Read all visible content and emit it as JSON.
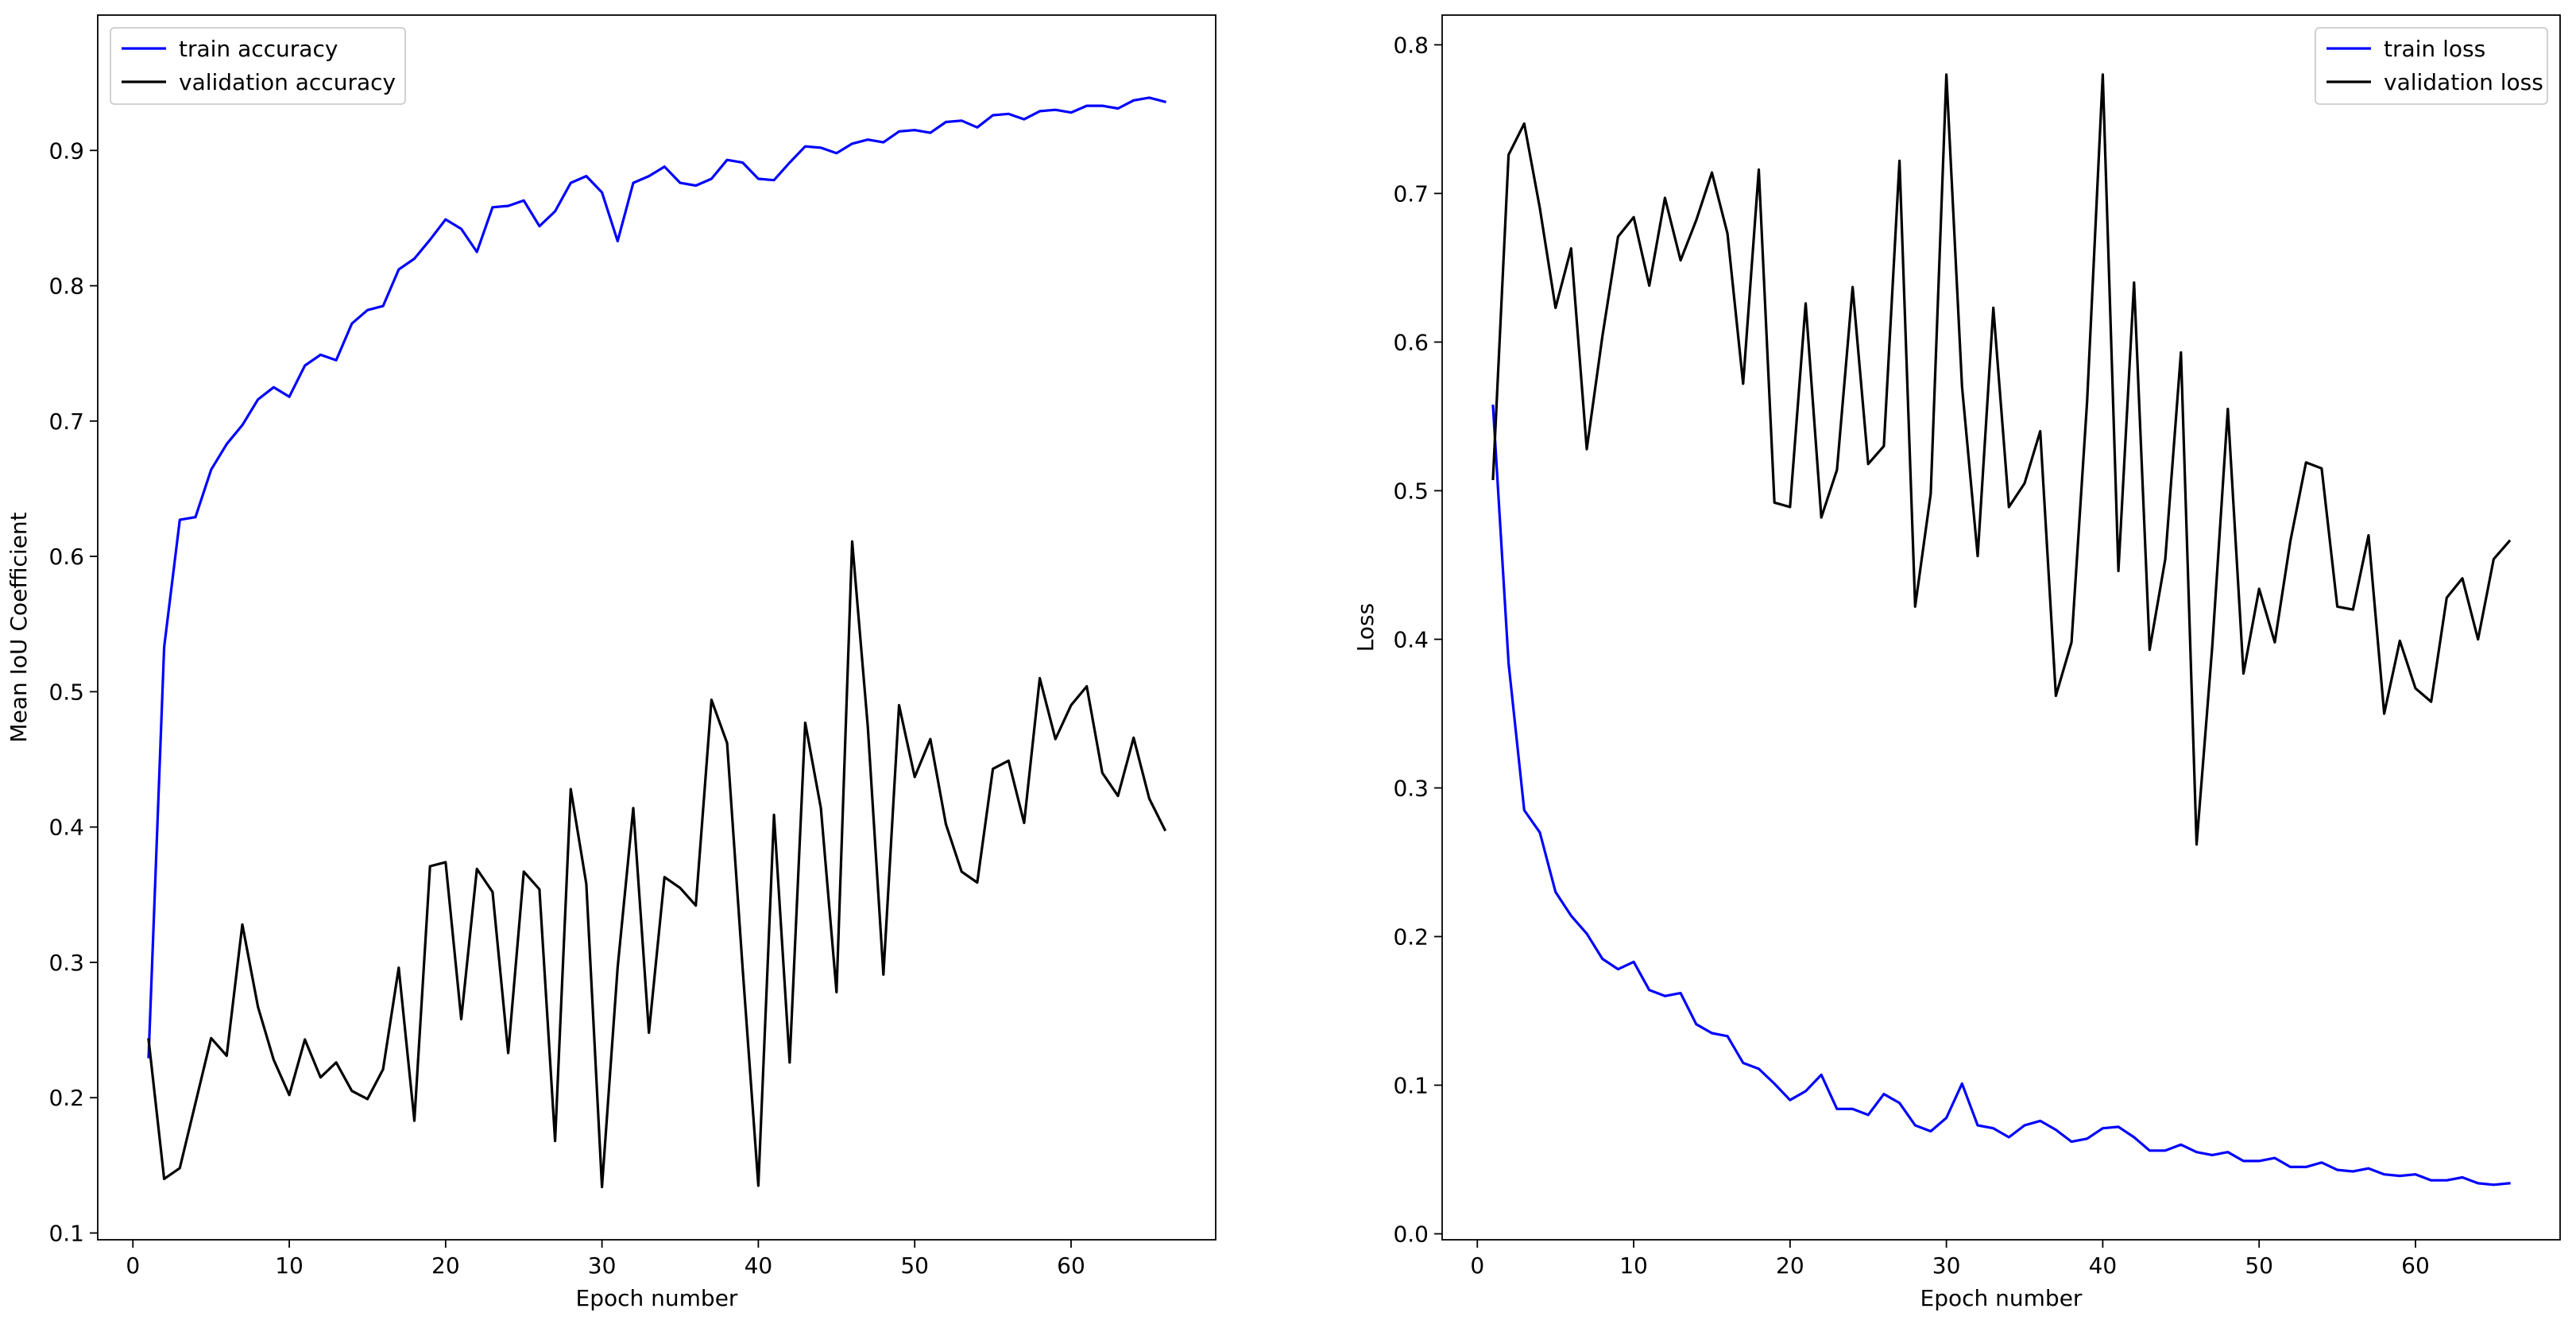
{
  "chart_data": [
    {
      "type": "line",
      "title": "",
      "xlabel": "Epoch number",
      "ylabel": "Mean IoU Coefficient",
      "xlim": [
        -2.25,
        69.25
      ],
      "ylim": [
        0.095,
        1.0
      ],
      "xticks": [
        0,
        10,
        20,
        30,
        40,
        50,
        60
      ],
      "yticks": [
        0.1,
        0.2,
        0.3,
        0.4,
        0.5,
        0.6,
        0.7,
        0.8,
        0.9
      ],
      "tick_labels_x": [
        "0",
        "10",
        "20",
        "30",
        "40",
        "50",
        "60"
      ],
      "tick_labels_y": [
        "0.1",
        "0.2",
        "0.3",
        "0.4",
        "0.5",
        "0.6",
        "0.7",
        "0.8",
        "0.9"
      ],
      "grid": false,
      "legend_position": "top-left",
      "x": [
        1,
        2,
        3,
        4,
        5,
        6,
        7,
        8,
        9,
        10,
        11,
        12,
        13,
        14,
        15,
        16,
        17,
        18,
        19,
        20,
        21,
        22,
        23,
        24,
        25,
        26,
        27,
        28,
        29,
        30,
        31,
        32,
        33,
        34,
        35,
        36,
        37,
        38,
        39,
        40,
        41,
        42,
        43,
        44,
        45,
        46,
        47,
        48,
        49,
        50,
        51,
        52,
        53,
        54,
        55,
        56,
        57,
        58,
        59,
        60,
        61,
        62,
        63,
        64,
        65,
        66
      ],
      "series": [
        {
          "name": "train accuracy",
          "color": "#0000ff",
          "values": [
            0.23,
            0.533,
            0.627,
            0.629,
            0.664,
            0.683,
            0.697,
            0.716,
            0.725,
            0.718,
            0.741,
            0.749,
            0.745,
            0.772,
            0.782,
            0.785,
            0.812,
            0.82,
            0.834,
            0.849,
            0.842,
            0.825,
            0.858,
            0.859,
            0.863,
            0.844,
            0.855,
            0.876,
            0.881,
            0.869,
            0.833,
            0.876,
            0.881,
            0.888,
            0.876,
            0.874,
            0.879,
            0.893,
            0.891,
            0.879,
            0.878,
            0.891,
            0.903,
            0.902,
            0.898,
            0.905,
            0.908,
            0.906,
            0.914,
            0.915,
            0.913,
            0.921,
            0.922,
            0.917,
            0.926,
            0.927,
            0.923,
            0.929,
            0.93,
            0.928,
            0.933,
            0.933,
            0.931,
            0.937,
            0.939,
            0.936
          ]
        },
        {
          "name": "validation accuracy",
          "color": "#000000",
          "values": [
            0.243,
            0.14,
            0.148,
            0.196,
            0.244,
            0.231,
            0.328,
            0.267,
            0.228,
            0.202,
            0.243,
            0.215,
            0.226,
            0.205,
            0.199,
            0.221,
            0.296,
            0.183,
            0.371,
            0.374,
            0.258,
            0.369,
            0.352,
            0.233,
            0.367,
            0.354,
            0.168,
            0.428,
            0.358,
            0.134,
            0.296,
            0.414,
            0.248,
            0.363,
            0.355,
            0.342,
            0.494,
            0.462,
            0.295,
            0.135,
            0.409,
            0.226,
            0.477,
            0.414,
            0.278,
            0.611,
            0.474,
            0.291,
            0.49,
            0.437,
            0.465,
            0.402,
            0.367,
            0.359,
            0.443,
            0.449,
            0.403,
            0.51,
            0.465,
            0.49,
            0.504,
            0.44,
            0.423,
            0.466,
            0.421,
            0.398
          ]
        }
      ]
    },
    {
      "type": "line",
      "title": "",
      "xlabel": "Epoch number",
      "ylabel": "Loss",
      "xlim": [
        -2.25,
        69.25
      ],
      "ylim": [
        -0.004,
        0.82
      ],
      "xticks": [
        0,
        10,
        20,
        30,
        40,
        50,
        60
      ],
      "yticks": [
        0.0,
        0.1,
        0.2,
        0.3,
        0.4,
        0.5,
        0.6,
        0.7,
        0.8
      ],
      "tick_labels_x": [
        "0",
        "10",
        "20",
        "30",
        "40",
        "50",
        "60"
      ],
      "tick_labels_y": [
        "0.0",
        "0.1",
        "0.2",
        "0.3",
        "0.4",
        "0.5",
        "0.6",
        "0.7",
        "0.8"
      ],
      "grid": false,
      "legend_position": "top-right",
      "x": [
        1,
        2,
        3,
        4,
        5,
        6,
        7,
        8,
        9,
        10,
        11,
        12,
        13,
        14,
        15,
        16,
        17,
        18,
        19,
        20,
        21,
        22,
        23,
        24,
        25,
        26,
        27,
        28,
        29,
        30,
        31,
        32,
        33,
        34,
        35,
        36,
        37,
        38,
        39,
        40,
        41,
        42,
        43,
        44,
        45,
        46,
        47,
        48,
        49,
        50,
        51,
        52,
        53,
        54,
        55,
        56,
        57,
        58,
        59,
        60,
        61,
        62,
        63,
        64,
        65,
        66
      ],
      "series": [
        {
          "name": "train loss",
          "color": "#0000ff",
          "values": [
            0.557,
            0.384,
            0.285,
            0.27,
            0.23,
            0.214,
            0.202,
            0.185,
            0.178,
            0.183,
            0.164,
            0.16,
            0.162,
            0.141,
            0.135,
            0.133,
            0.115,
            0.111,
            0.101,
            0.09,
            0.096,
            0.107,
            0.084,
            0.084,
            0.08,
            0.094,
            0.088,
            0.073,
            0.069,
            0.078,
            0.101,
            0.073,
            0.071,
            0.065,
            0.073,
            0.076,
            0.07,
            0.062,
            0.064,
            0.071,
            0.072,
            0.065,
            0.056,
            0.056,
            0.06,
            0.055,
            0.053,
            0.055,
            0.049,
            0.049,
            0.051,
            0.045,
            0.045,
            0.048,
            0.043,
            0.042,
            0.044,
            0.04,
            0.039,
            0.04,
            0.036,
            0.036,
            0.038,
            0.034,
            0.033,
            0.034
          ]
        },
        {
          "name": "validation loss",
          "color": "#000000",
          "values": [
            0.508,
            0.726,
            0.747,
            0.69,
            0.623,
            0.663,
            0.528,
            0.604,
            0.671,
            0.684,
            0.638,
            0.697,
            0.655,
            0.682,
            0.714,
            0.673,
            0.572,
            0.716,
            0.492,
            0.489,
            0.626,
            0.482,
            0.514,
            0.637,
            0.518,
            0.53,
            0.722,
            0.422,
            0.498,
            0.78,
            0.57,
            0.456,
            0.623,
            0.489,
            0.505,
            0.54,
            0.362,
            0.398,
            0.56,
            0.78,
            0.446,
            0.64,
            0.393,
            0.454,
            0.593,
            0.262,
            0.395,
            0.555,
            0.377,
            0.434,
            0.398,
            0.466,
            0.519,
            0.515,
            0.422,
            0.42,
            0.47,
            0.35,
            0.399,
            0.367,
            0.358,
            0.428,
            0.441,
            0.4,
            0.454,
            0.466
          ]
        }
      ]
    }
  ]
}
